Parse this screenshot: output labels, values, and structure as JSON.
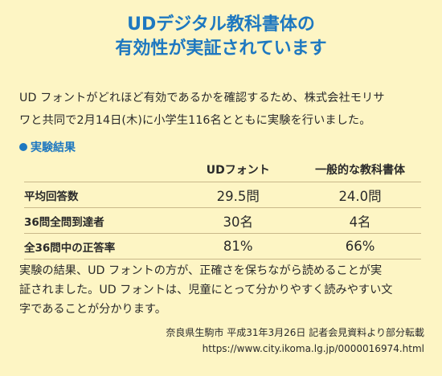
{
  "title": {
    "line1": "UDデジタル教科書体の",
    "line2": "有効性が実証されています"
  },
  "intro": {
    "line1": "UD フォントがどれほど有効であるかを確認するため、株式会社モリサ",
    "line2": "ワと共同で2月14日(木)に小学生116名とともに実験を行いました。"
  },
  "section": {
    "label": "実験結果",
    "bullet_color": "#1e78c0"
  },
  "table": {
    "columns": [
      "UDフォント",
      "一般的な教科書体"
    ],
    "rows": [
      {
        "label": "平均回答数",
        "values": [
          "29.5問",
          "24.0問"
        ]
      },
      {
        "label": "36問全問到達者",
        "values": [
          "30名",
          "4名"
        ]
      },
      {
        "label": "全36問中の正答率",
        "values": [
          "81%",
          "66%"
        ]
      }
    ]
  },
  "summary": {
    "line1": "実験の結果、UD フォントの方が、正確さを保ちながら読めることが実",
    "line2": "証されました。UD フォントは、児童にとって分かりやすく読みやすい文",
    "line3": "字であることが分かります。"
  },
  "source": {
    "line1": "奈良県生駒市 平成31年3月26日 記者会見資料より部分転載",
    "url": "https://www.city.ikoma.lg.jp/0000016974.html"
  },
  "colors": {
    "background": "#fdf5c4",
    "accent": "#1e78c0"
  }
}
